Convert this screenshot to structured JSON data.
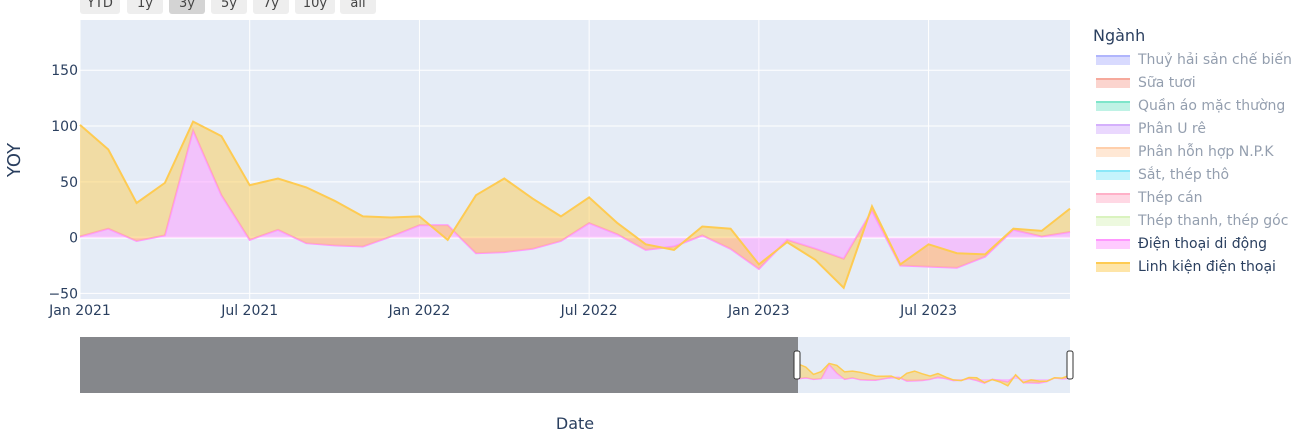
{
  "range_buttons": [
    {
      "label": "YTD",
      "active": false
    },
    {
      "label": "1y",
      "active": false
    },
    {
      "label": "3y",
      "active": true
    },
    {
      "label": "5y",
      "active": false
    },
    {
      "label": "7y",
      "active": false
    },
    {
      "label": "10y",
      "active": false
    },
    {
      "label": "all",
      "active": false
    }
  ],
  "legend": {
    "title": "Ngành",
    "items": [
      {
        "label": "Thuỷ hải sản chế biến",
        "color": "#636efa",
        "visible": false
      },
      {
        "label": "Sữa tươi",
        "color": "#ef553b",
        "visible": false
      },
      {
        "label": "Quần áo mặc thường",
        "color": "#00cc96",
        "visible": false
      },
      {
        "label": "Phân U rê",
        "color": "#ab63fa",
        "visible": false
      },
      {
        "label": "Phân hỗn hợp N.P.K",
        "color": "#ffa15a",
        "visible": false
      },
      {
        "label": "Sắt, thép thô",
        "color": "#19d3f3",
        "visible": false
      },
      {
        "label": "Thép cán",
        "color": "#ff6692",
        "visible": false
      },
      {
        "label": "Thép thanh, thép góc",
        "color": "#b6e880",
        "visible": false
      },
      {
        "label": "Điện thoại di động",
        "color": "#ff97ff",
        "visible": true
      },
      {
        "label": "Linh kiện điện thoại",
        "color": "#fecb52",
        "visible": true
      }
    ]
  },
  "chart_data": {
    "type": "area",
    "xlabel": "Date",
    "ylabel": "YOY",
    "x_range": [
      "2021-01",
      "2023-12"
    ],
    "ylim": [
      -55,
      195
    ],
    "y_ticks": [
      -50,
      0,
      50,
      100,
      150
    ],
    "x_ticks": [
      "Jan 2021",
      "Jul 2021",
      "Jan 2022",
      "Jul 2022",
      "Jan 2023",
      "Jul 2023"
    ],
    "grid": true,
    "legend_position": "right",
    "stacked": true,
    "x": [
      "2021-01",
      "2021-02",
      "2021-03",
      "2021-04",
      "2021-05",
      "2021-06",
      "2021-07",
      "2021-08",
      "2021-09",
      "2021-10",
      "2021-11",
      "2021-12",
      "2022-01",
      "2022-02",
      "2022-03",
      "2022-04",
      "2022-05",
      "2022-06",
      "2022-07",
      "2022-08",
      "2022-09",
      "2022-10",
      "2022-11",
      "2022-12",
      "2023-01",
      "2023-02",
      "2023-03",
      "2023-04",
      "2023-05",
      "2023-06",
      "2023-07",
      "2023-08",
      "2023-09",
      "2023-10",
      "2023-11",
      "2023-12"
    ],
    "series": [
      {
        "name": "Điện thoại di động",
        "color": "#ff97ff",
        "values": [
          1,
          8,
          -3,
          2,
          96,
          38,
          -2,
          7,
          -5,
          -7,
          -8,
          1,
          11,
          11,
          -14,
          -13,
          -10,
          -3,
          13,
          3,
          -11,
          -8,
          2,
          -10,
          -28,
          -2,
          -10,
          -19,
          24,
          -25,
          -26,
          -27,
          -17,
          7,
          1,
          5
        ]
      },
      {
        "name": "Linh kiện điện thoại",
        "color": "#fecb52",
        "values": [
          100,
          71,
          34,
          47,
          8,
          53,
          49,
          46,
          50,
          40,
          27,
          17,
          8,
          -13,
          52,
          66,
          45,
          22,
          23,
          10,
          5,
          -3,
          8,
          18,
          4,
          -2,
          -10,
          -26,
          4,
          1,
          20,
          13,
          2,
          1,
          5,
          21
        ]
      }
    ],
    "range_slider": {
      "selected_from": "2021-01",
      "selected_to": "2023-12"
    }
  }
}
